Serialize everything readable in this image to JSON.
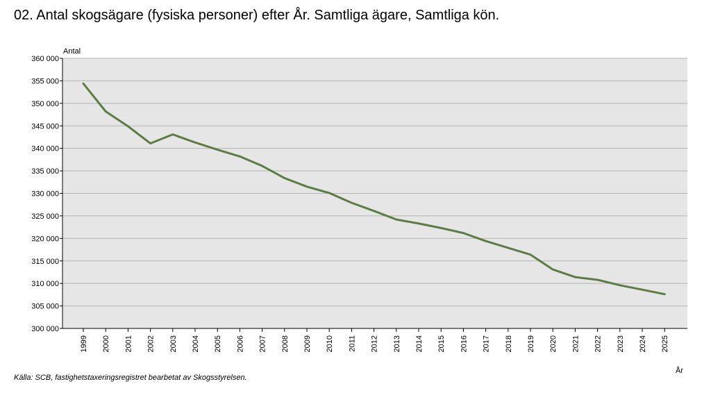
{
  "chart_data": {
    "type": "line",
    "title": "02. Antal skogsägare (fysiska personer) efter År. Samtliga ägare, Samtliga kön.",
    "ylabel": "Antal",
    "xlabel": "År",
    "source": "Källa: SCB, fastighetstaxeringsregistret bearbetat av Skogsstyrelsen.",
    "ylim": [
      300000,
      360000
    ],
    "y_ticks": [
      "300 000",
      "305 000",
      "310 000",
      "315 000",
      "320 000",
      "325 000",
      "330 000",
      "335 000",
      "340 000",
      "345 000",
      "350 000",
      "355 000",
      "360 000"
    ],
    "categories": [
      "1999",
      "2000",
      "2001",
      "2002",
      "2003",
      "2004",
      "2005",
      "2006",
      "2007",
      "2008",
      "2009",
      "2010",
      "2011",
      "2012",
      "2013",
      "2014",
      "2015",
      "2016",
      "2017",
      "2018",
      "2019",
      "2020",
      "2021",
      "2022",
      "2023",
      "2024",
      "2025"
    ],
    "values": [
      354400,
      348200,
      344900,
      341100,
      343100,
      341300,
      339700,
      338200,
      336100,
      333400,
      331500,
      330100,
      327900,
      326100,
      324200,
      323300,
      322300,
      321200,
      319400,
      317900,
      316400,
      313100,
      311400,
      310800,
      309600,
      308600,
      307600
    ],
    "grid": true,
    "colors": {
      "line": "#5b7d44",
      "plot_background": "#e6e6e6",
      "gridline": "#b3b3b3"
    }
  }
}
